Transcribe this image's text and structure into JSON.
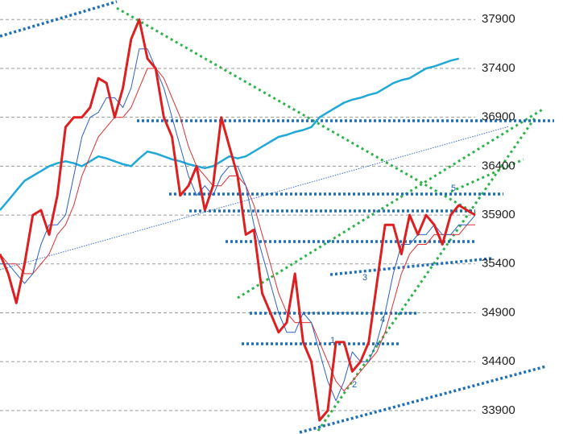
{
  "chart_data": {
    "type": "line",
    "categories": [
      null,
      null,
      null,
      null,
      null,
      null,
      null,
      null,
      null,
      null,
      null,
      null,
      null,
      null,
      null,
      null,
      null,
      null,
      null,
      null,
      null,
      null,
      null,
      null,
      null,
      null,
      null,
      null,
      null,
      null,
      null,
      null,
      null,
      null,
      null,
      null,
      null,
      null,
      null,
      null,
      null,
      null,
      null,
      null,
      null,
      null,
      null,
      null,
      null,
      null,
      null,
      null,
      null,
      null,
      null,
      null,
      null,
      null,
      null
    ],
    "series": [
      {
        "color": "#20a8d8",
        "width": 2.5,
        "values": [
          35950,
          36050,
          36150,
          36250,
          36300,
          36350,
          36400,
          36430,
          36450,
          36430,
          36400,
          36450,
          36500,
          36480,
          36450,
          36420,
          36400,
          36480,
          36550,
          36530,
          36500,
          36470,
          36450,
          36420,
          36400,
          36380,
          36400,
          36450,
          36500,
          36480,
          36500,
          36550,
          36600,
          36650,
          36700,
          36720,
          36750,
          36770,
          36800,
          36900,
          36950,
          37000,
          37050,
          37080,
          37100,
          37130,
          37150,
          37200,
          37250,
          37280,
          37300,
          37350,
          37400,
          37420,
          37450,
          37480,
          37500,
          null,
          null
        ]
      },
      {
        "color": "#e03030",
        "width": 1,
        "values": [
          35500,
          35400,
          35400,
          35300,
          35300,
          35400,
          35500,
          35700,
          35800,
          36000,
          36300,
          36500,
          36700,
          36800,
          36900,
          36900,
          37000,
          37200,
          37400,
          37400,
          37300,
          37100,
          36900,
          36600,
          36400,
          36300,
          36200,
          36200,
          36300,
          36300,
          36200,
          36000,
          35700,
          35400,
          35100,
          34900,
          34800,
          34800,
          34800,
          34600,
          34400,
          34200,
          34100,
          34200,
          34300,
          34400,
          34500,
          34700,
          35000,
          35300,
          35500,
          35600,
          35600,
          35700,
          35700,
          35700,
          35700,
          35800,
          35800
        ]
      },
      {
        "color": "#2a62c4",
        "width": 1,
        "values": [
          35400,
          35400,
          35300,
          35200,
          35300,
          35600,
          35800,
          35800,
          35900,
          36300,
          36700,
          36900,
          36950,
          37100,
          37100,
          37000,
          37200,
          37600,
          37600,
          37400,
          37200,
          36900,
          36600,
          36300,
          36100,
          36200,
          36100,
          36300,
          36400,
          36400,
          36200,
          35800,
          35500,
          35200,
          34900,
          34700,
          34700,
          34900,
          34800,
          34500,
          34200,
          34000,
          34200,
          34500,
          34400,
          34400,
          34600,
          34900,
          35300,
          35600,
          35600,
          35700,
          35700,
          35800,
          35700,
          35700,
          35800,
          35800,
          35900
        ]
      },
      {
        "color": "#dd1f1f",
        "width": 3,
        "values": [
          35500,
          35300,
          35000,
          35400,
          35900,
          35950,
          35700,
          36100,
          36800,
          36900,
          36900,
          37000,
          37300,
          37250,
          36900,
          37200,
          37700,
          37900,
          37500,
          37400,
          36900,
          36700,
          36100,
          36200,
          36400,
          35950,
          36200,
          36900,
          36600,
          36300,
          35700,
          35750,
          35100,
          34900,
          34700,
          34800,
          35300,
          34600,
          34400,
          33800,
          33900,
          34600,
          34600,
          34300,
          34400,
          34600,
          35200,
          35800,
          35800,
          35500,
          35900,
          35700,
          35900,
          35800,
          35600,
          35900,
          36000,
          35950,
          35900
        ]
      }
    ],
    "ylim": [
      33660,
      38100
    ],
    "yticks": [
      33900,
      34400,
      34900,
      35400,
      35900,
      36400,
      36900,
      37400,
      37900
    ],
    "grid": true,
    "annotations": [
      "1",
      "2",
      "3",
      "4",
      "5"
    ]
  }
}
